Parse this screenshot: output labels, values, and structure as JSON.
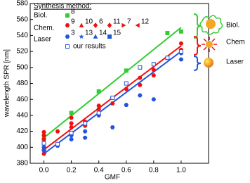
{
  "chart_data": {
    "type": "scatter",
    "x_label": "GMF",
    "y_label": "wavelength SPR [nm]",
    "xlim": [
      -0.1,
      1.2
    ],
    "ylim": [
      380,
      580
    ],
    "xticks": [
      {
        "value": 0,
        "label": "0.0"
      },
      {
        "value": 0.2,
        "label": "0.2"
      },
      {
        "value": 0.4,
        "label": "0.4"
      },
      {
        "value": 0.6,
        "label": "0.6"
      },
      {
        "value": 0.8,
        "label": "0.8"
      },
      {
        "value": 1,
        "label": "1.0"
      }
    ],
    "yticks": [
      380,
      400,
      420,
      440,
      460,
      480,
      500,
      520,
      540,
      560,
      580
    ],
    "legend_title": "Synthesis method:",
    "legend": [
      {
        "label": "Biol.",
        "items": [
          {
            "ref": "8",
            "marker": "square",
            "color": "#33cc33"
          }
        ]
      },
      {
        "label": "Chem.",
        "items": [
          {
            "ref": "9",
            "marker": "circle",
            "color": "#ee1111"
          },
          {
            "ref": "10",
            "marker": "triangle",
            "color": "#ee1111"
          },
          {
            "ref": "6",
            "marker": "diamond",
            "color": "#ee1111"
          },
          {
            "ref": "11",
            "marker": "diamond",
            "color": "#ee1111"
          },
          {
            "ref": "7",
            "marker": "tri-right",
            "color": "#ee1111"
          },
          {
            "ref": "12",
            "marker": "tri-left",
            "color": "#ee1111"
          }
        ]
      },
      {
        "label": "Laser",
        "items": [
          {
            "ref": "3",
            "marker": "circle",
            "color": "#2255dd"
          },
          {
            "ref": "13",
            "marker": "star",
            "color": "#2255dd"
          },
          {
            "ref": "14",
            "marker": "triangle",
            "color": "#2255dd"
          },
          {
            "ref": "15",
            "marker": "square",
            "color": "#2255dd"
          }
        ]
      },
      {
        "items": [
          {
            "text": "our results",
            "marker": "open-square",
            "color": "#2255dd"
          }
        ]
      }
    ],
    "series": [
      {
        "name": "Biol.",
        "color": "#33cc33",
        "marker": "square",
        "x": [
          0,
          0.2,
          0.4,
          0.6,
          0.9,
          1.0
        ],
        "y": [
          411,
          443,
          470,
          496,
          543,
          545
        ],
        "fit": {
          "x": [
            0,
            1
          ],
          "y": [
            412,
            550
          ]
        }
      },
      {
        "name": "Chem.",
        "color": "#ee1111",
        "marker": "circle",
        "x": [
          0,
          0,
          0,
          0,
          0,
          0.1,
          0.2,
          0.2,
          0.2,
          0.3,
          0.3,
          0.4,
          0.4,
          0.5,
          0.5,
          0.6,
          0.7,
          0.7,
          0.8,
          0.8,
          1.0,
          1.0,
          1.0
        ],
        "y": [
          419,
          415,
          410,
          397,
          392,
          420,
          437,
          430,
          425,
          432,
          427,
          452,
          448,
          455,
          462,
          473,
          487,
          478,
          497,
          490,
          530,
          522,
          518
        ],
        "fit": {
          "x": [
            0,
            1
          ],
          "y": [
            397,
            527
          ]
        }
      },
      {
        "name": "Laser",
        "color": "#2255dd",
        "marker": "circle",
        "x": [
          0,
          0,
          0.1,
          0.2,
          0.2,
          0.3,
          0.3,
          0.4,
          0.5,
          0.6,
          0.7,
          0.8,
          1.0,
          1.0
        ],
        "y": [
          400,
          396,
          402,
          415,
          410,
          420,
          412,
          440,
          425,
          453,
          465,
          460,
          510,
          518
        ],
        "fit": {
          "x": [
            0,
            1
          ],
          "y": [
            392,
            520
          ]
        }
      },
      {
        "name": "our results",
        "color": "#2255dd",
        "marker": "open-square",
        "x": [
          0,
          0.1,
          0.2,
          0.3,
          0.4,
          0.5,
          0.6,
          0.7,
          0.8,
          0.9,
          1.0
        ],
        "y": [
          405,
          404,
          418,
          430,
          443,
          462,
          480,
          500,
          504,
          512,
          520
        ]
      }
    ],
    "side_labels": [
      "Biol.",
      "Chem",
      "Laser"
    ]
  }
}
